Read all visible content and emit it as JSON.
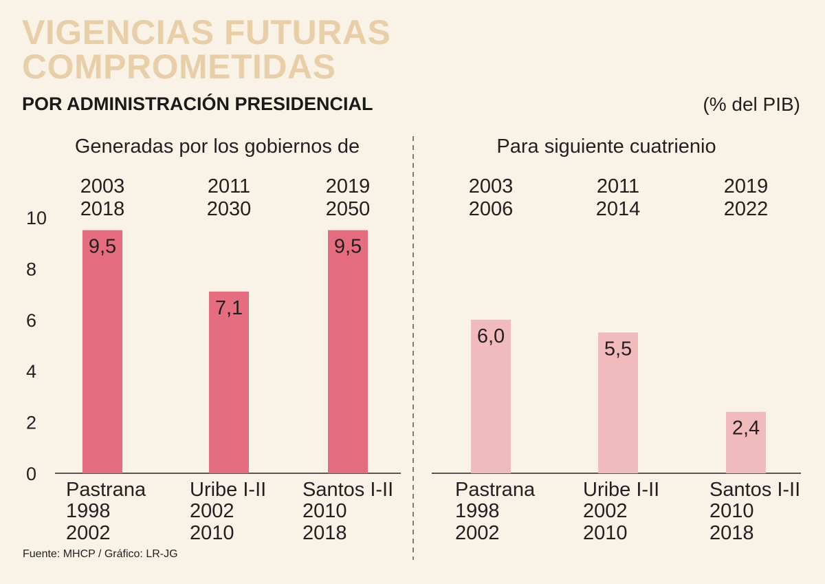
{
  "title_line1": "VIGENCIAS FUTURAS",
  "title_line2": "COMPROMETIDAS",
  "subtitle": "POR ADMINISTRACIÓN PRESIDENCIAL",
  "unit": "(% del PIB)",
  "source": "Fuente: MHCP / Gráfico: LR-JG",
  "colors": {
    "left_bar": "#e56d7f",
    "right_bar": "#f1babd",
    "background": "#f8f2e7",
    "title": "#e9cfa7"
  },
  "chart_data": {
    "type": "bar",
    "ylim": [
      0,
      10
    ],
    "yticks": [
      "0",
      "2",
      "4",
      "6",
      "8",
      "10"
    ],
    "categories": [
      {
        "name": "Pastrana",
        "start": "1998",
        "end": "2002"
      },
      {
        "name": "Uribe I-II",
        "start": "2002",
        "end": "2010"
      },
      {
        "name": "Santos I-II",
        "start": "2010",
        "end": "2018"
      }
    ],
    "panels": [
      {
        "heading": "Generadas por los gobiernos de",
        "periods": [
          [
            "2003",
            "2018"
          ],
          [
            "2011",
            "2030"
          ],
          [
            "2019",
            "2050"
          ]
        ],
        "values": [
          9.5,
          7.1,
          9.5
        ],
        "labels": [
          "9,5",
          "7,1",
          "9,5"
        ]
      },
      {
        "heading": "Para siguiente cuatrienio",
        "periods": [
          [
            "2003",
            "2006"
          ],
          [
            "2011",
            "2014"
          ],
          [
            "2019",
            "2022"
          ]
        ],
        "values": [
          6.0,
          5.5,
          2.4
        ],
        "labels": [
          "6,0",
          "5,5",
          "2,4"
        ]
      }
    ]
  }
}
